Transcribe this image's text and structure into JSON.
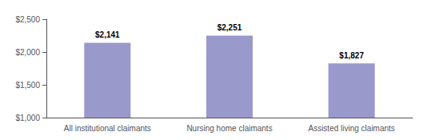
{
  "chart_data": {
    "type": "bar",
    "categories": [
      "All institutional claimants",
      "Nursing home claimants",
      "Assisted living claimants"
    ],
    "values": [
      2141,
      2251,
      1827
    ],
    "value_labels": [
      "$2,141",
      "$2,251",
      "$1,827"
    ],
    "color": "#9999cc",
    "ylim": [
      1000,
      2500
    ],
    "yticks": [
      {
        "value": 1000,
        "label": "$1,000"
      },
      {
        "value": 1500,
        "label": "$1,500"
      },
      {
        "value": 2000,
        "label": "$2,000"
      },
      {
        "value": 2500,
        "label": "$2,500"
      }
    ],
    "grid": false,
    "data_labels": true
  }
}
